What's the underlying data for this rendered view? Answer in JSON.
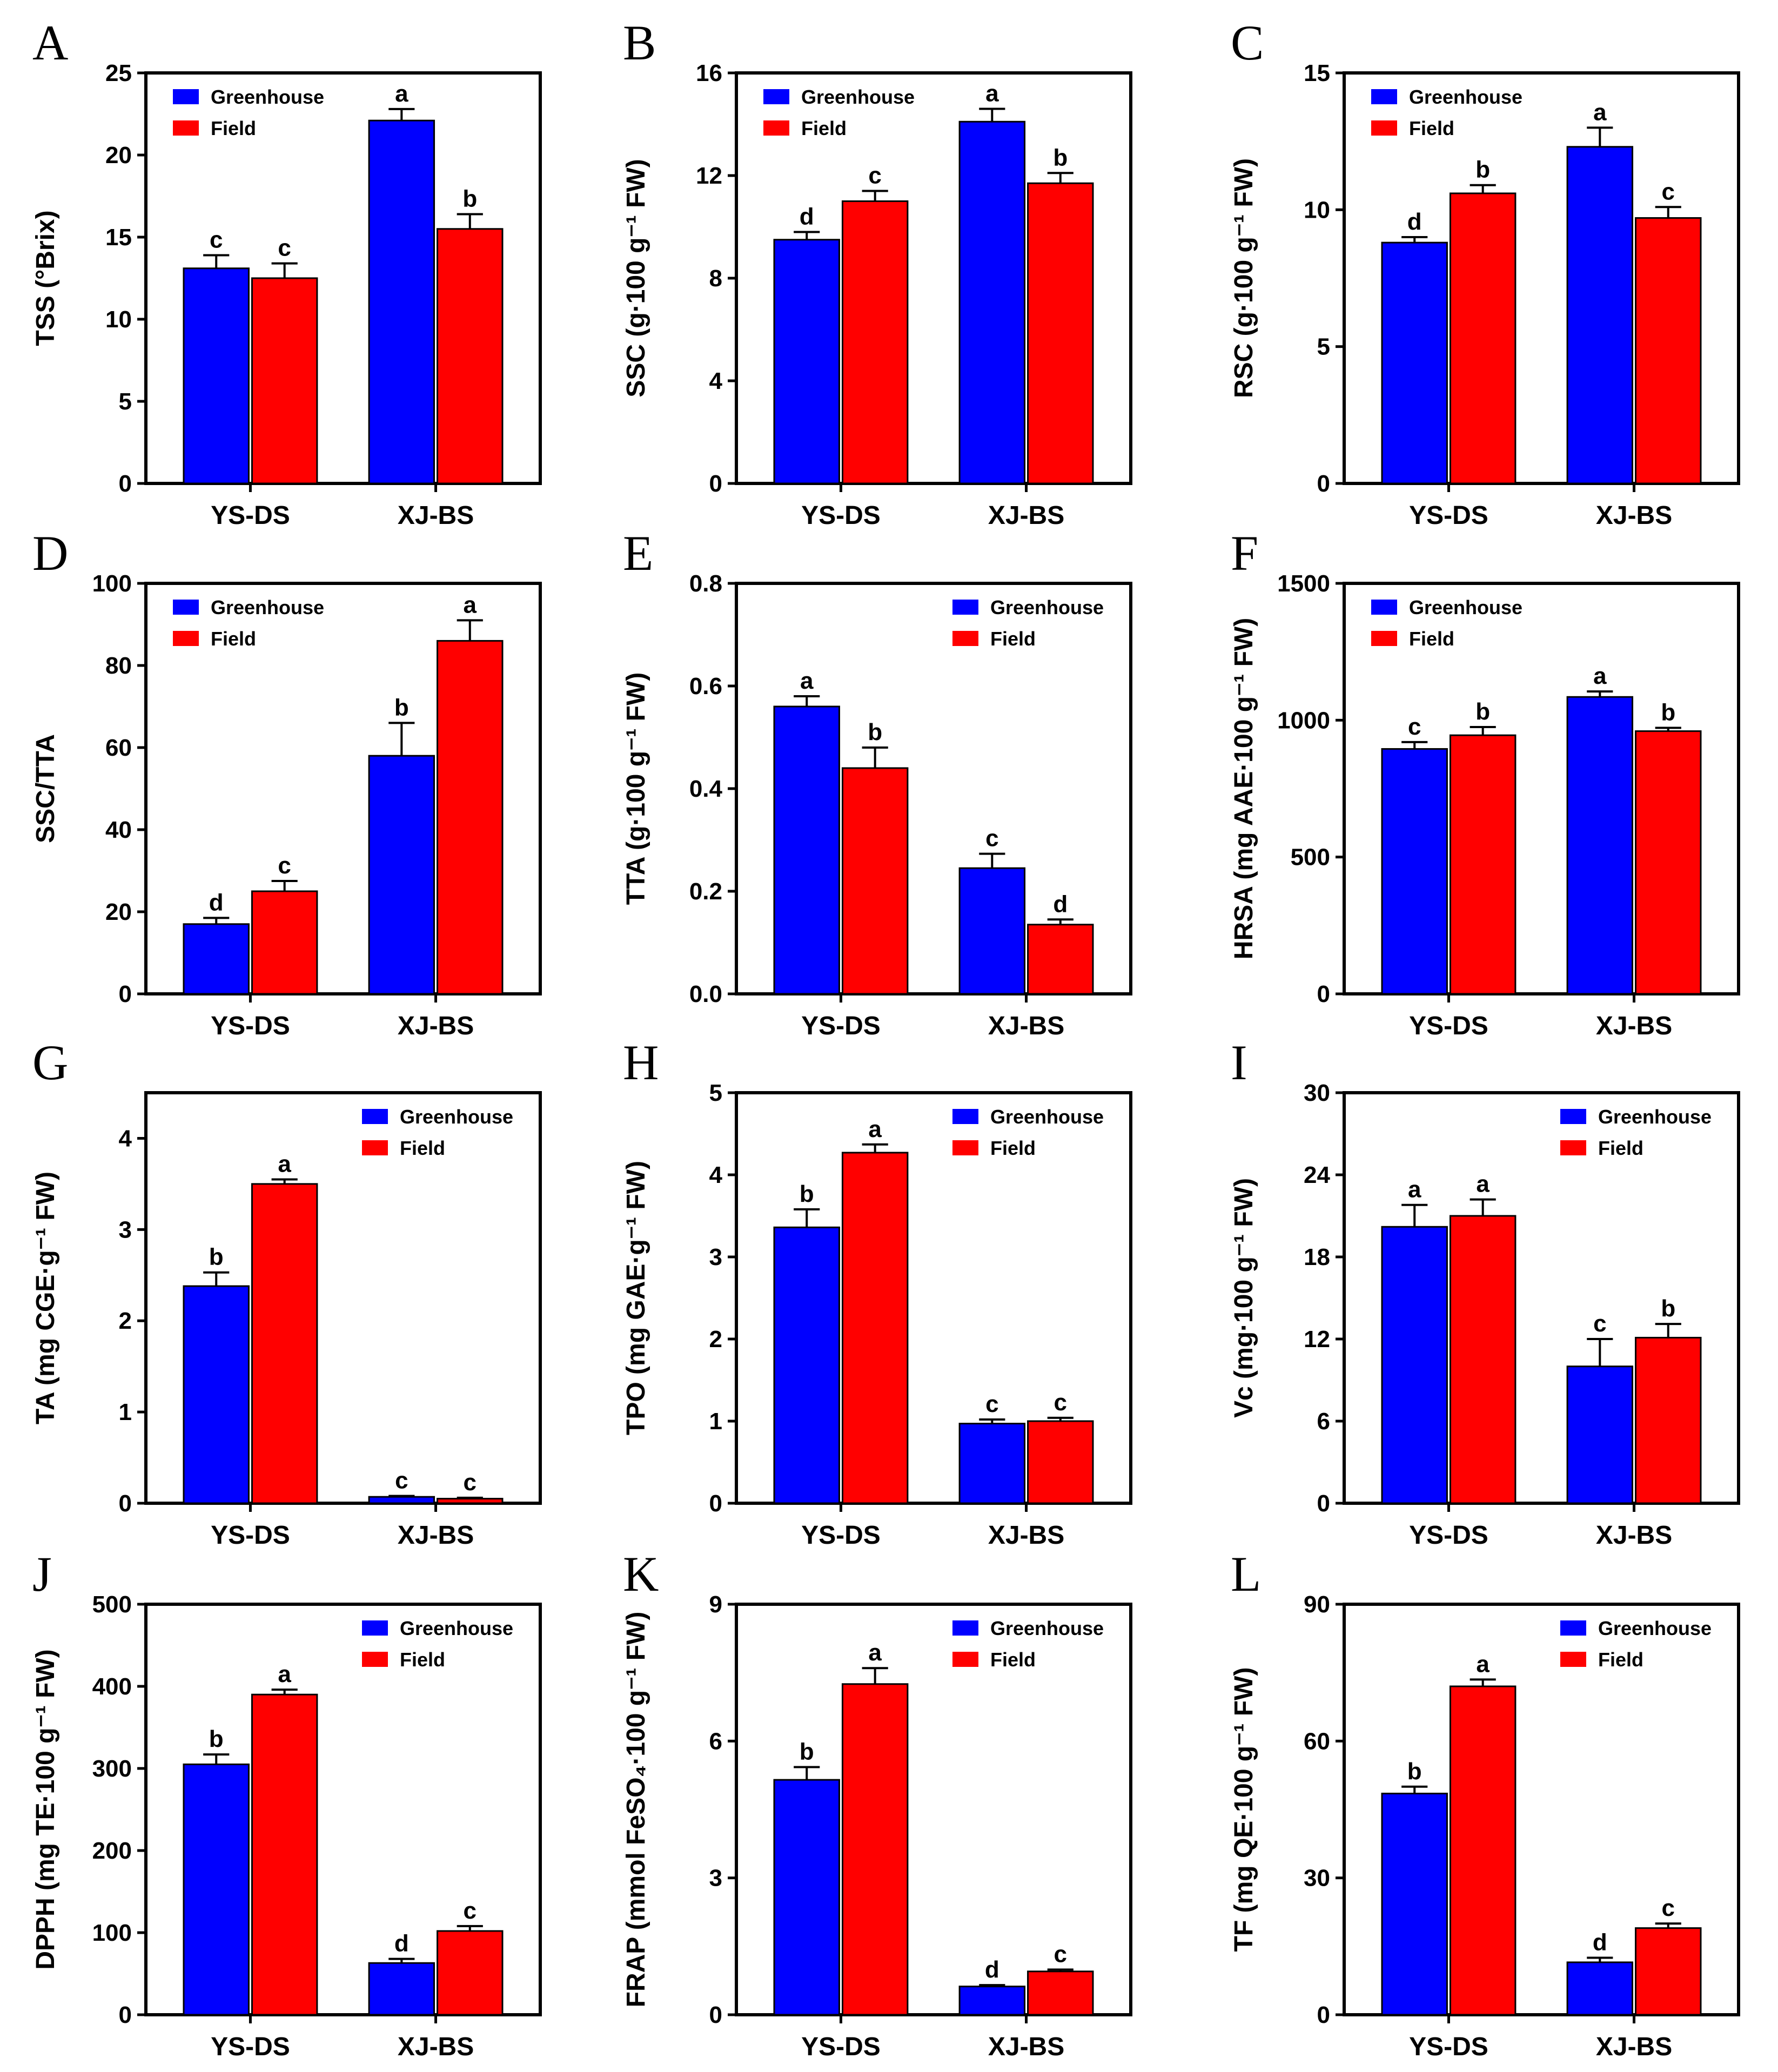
{
  "legend": {
    "greenhouse": "Greenhouse",
    "field": "Field"
  },
  "colors": {
    "greenhouse": "#0000ff",
    "field": "#ff0000"
  },
  "chart_data": [
    {
      "panel": "A",
      "type": "bar",
      "categories": [
        "YS-DS",
        "XJ-BS"
      ],
      "ylabel": "TSS (°Brix)",
      "ylim": [
        0,
        25
      ],
      "yticks": [
        0,
        5,
        10,
        15,
        20,
        25
      ],
      "legend_position": "top-left",
      "series": [
        {
          "name": "Greenhouse",
          "values": [
            13.1,
            22.1
          ],
          "errors": [
            0.8,
            0.7
          ],
          "letters": [
            "c",
            "a"
          ]
        },
        {
          "name": "Field",
          "values": [
            12.5,
            15.5
          ],
          "errors": [
            0.9,
            0.9
          ],
          "letters": [
            "c",
            "b"
          ]
        }
      ]
    },
    {
      "panel": "B",
      "type": "bar",
      "categories": [
        "YS-DS",
        "XJ-BS"
      ],
      "ylabel": "SSC (g·100 g⁻¹ FW)",
      "ylim": [
        0,
        16
      ],
      "yticks": [
        0,
        4,
        8,
        12,
        16
      ],
      "legend_position": "top-left",
      "series": [
        {
          "name": "Greenhouse",
          "values": [
            9.5,
            14.1
          ],
          "errors": [
            0.3,
            0.5
          ],
          "letters": [
            "d",
            "a"
          ]
        },
        {
          "name": "Field",
          "values": [
            11.0,
            11.7
          ],
          "errors": [
            0.4,
            0.4
          ],
          "letters": [
            "c",
            "b"
          ]
        }
      ]
    },
    {
      "panel": "C",
      "type": "bar",
      "categories": [
        "YS-DS",
        "XJ-BS"
      ],
      "ylabel": "RSC (g·100 g⁻¹ FW)",
      "ylim": [
        0,
        15
      ],
      "yticks": [
        0,
        5,
        10,
        15
      ],
      "legend_position": "top-left",
      "series": [
        {
          "name": "Greenhouse",
          "values": [
            8.8,
            12.3
          ],
          "errors": [
            0.2,
            0.7
          ],
          "letters": [
            "d",
            "a"
          ]
        },
        {
          "name": "Field",
          "values": [
            10.6,
            9.7
          ],
          "errors": [
            0.3,
            0.4
          ],
          "letters": [
            "b",
            "c"
          ]
        }
      ]
    },
    {
      "panel": "D",
      "type": "bar",
      "categories": [
        "YS-DS",
        "XJ-BS"
      ],
      "ylabel": "SSC/TTA",
      "ylim": [
        0,
        100
      ],
      "yticks": [
        0,
        20,
        40,
        60,
        80,
        100
      ],
      "legend_position": "top-left",
      "series": [
        {
          "name": "Greenhouse",
          "values": [
            17,
            58
          ],
          "errors": [
            1.5,
            8
          ],
          "letters": [
            "d",
            "b"
          ]
        },
        {
          "name": "Field",
          "values": [
            25,
            86
          ],
          "errors": [
            2.5,
            5
          ],
          "letters": [
            "c",
            "a"
          ]
        }
      ]
    },
    {
      "panel": "E",
      "type": "bar",
      "categories": [
        "YS-DS",
        "XJ-BS"
      ],
      "ylabel": "TTA (g·100 g⁻¹ FW)",
      "ylim": [
        0,
        0.8
      ],
      "yticks": [
        0.0,
        0.2,
        0.4,
        0.6,
        0.8
      ],
      "ytick_decimals": 1,
      "legend_position": "top-right",
      "series": [
        {
          "name": "Greenhouse",
          "values": [
            0.56,
            0.245
          ],
          "errors": [
            0.02,
            0.028
          ],
          "letters": [
            "a",
            "c"
          ]
        },
        {
          "name": "Field",
          "values": [
            0.44,
            0.135
          ],
          "errors": [
            0.04,
            0.01
          ],
          "letters": [
            "b",
            "d"
          ]
        }
      ]
    },
    {
      "panel": "F",
      "type": "bar",
      "categories": [
        "YS-DS",
        "XJ-BS"
      ],
      "ylabel": "HRSA (mg AAE·100 g⁻¹ FW)",
      "ylim": [
        0,
        1500
      ],
      "yticks": [
        0,
        500,
        1000,
        1500
      ],
      "legend_position": "top-left",
      "series": [
        {
          "name": "Greenhouse",
          "values": [
            895,
            1085
          ],
          "errors": [
            25,
            20
          ],
          "letters": [
            "c",
            "a"
          ]
        },
        {
          "name": "Field",
          "values": [
            945,
            960
          ],
          "errors": [
            30,
            12
          ],
          "letters": [
            "b",
            "b"
          ]
        }
      ]
    },
    {
      "panel": "G",
      "type": "bar",
      "categories": [
        "YS-DS",
        "XJ-BS"
      ],
      "ylabel": "TA (mg CGE·g⁻¹ FW)",
      "ylim": [
        0,
        4.5
      ],
      "yticks": [
        0,
        1,
        2,
        3,
        4
      ],
      "legend_position": "top-right",
      "series": [
        {
          "name": "Greenhouse",
          "values": [
            2.38,
            0.07
          ],
          "errors": [
            0.15,
            0.01
          ],
          "letters": [
            "b",
            "c"
          ]
        },
        {
          "name": "Field",
          "values": [
            3.5,
            0.05
          ],
          "errors": [
            0.05,
            0.01
          ],
          "letters": [
            "a",
            "c"
          ]
        }
      ]
    },
    {
      "panel": "H",
      "type": "bar",
      "categories": [
        "YS-DS",
        "XJ-BS"
      ],
      "ylabel": "TPO (mg GAE·g⁻¹ FW)",
      "ylim": [
        0,
        5
      ],
      "yticks": [
        0,
        1,
        2,
        3,
        4,
        5
      ],
      "legend_position": "top-right",
      "series": [
        {
          "name": "Greenhouse",
          "values": [
            3.36,
            0.97
          ],
          "errors": [
            0.22,
            0.05
          ],
          "letters": [
            "b",
            "c"
          ]
        },
        {
          "name": "Field",
          "values": [
            4.27,
            1.0
          ],
          "errors": [
            0.1,
            0.04
          ],
          "letters": [
            "a",
            "c"
          ]
        }
      ]
    },
    {
      "panel": "I",
      "type": "bar",
      "categories": [
        "YS-DS",
        "XJ-BS"
      ],
      "ylabel": "Vc (mg·100 g⁻¹ FW)",
      "ylim": [
        0,
        30
      ],
      "yticks": [
        0,
        6,
        12,
        18,
        24,
        30
      ],
      "legend_position": "top-right",
      "series": [
        {
          "name": "Greenhouse",
          "values": [
            20.2,
            10.0
          ],
          "errors": [
            1.6,
            2.0
          ],
          "letters": [
            "a",
            "c"
          ]
        },
        {
          "name": "Field",
          "values": [
            21.0,
            12.1
          ],
          "errors": [
            1.2,
            1.0
          ],
          "letters": [
            "a",
            "b"
          ]
        }
      ]
    },
    {
      "panel": "J",
      "type": "bar",
      "categories": [
        "YS-DS",
        "XJ-BS"
      ],
      "ylabel": "DPPH (mg TE·100 g⁻¹ FW)",
      "ylim": [
        0,
        500
      ],
      "yticks": [
        0,
        100,
        200,
        300,
        400,
        500
      ],
      "legend_position": "top-right",
      "series": [
        {
          "name": "Greenhouse",
          "values": [
            305,
            63
          ],
          "errors": [
            12,
            5
          ],
          "letters": [
            "b",
            "d"
          ]
        },
        {
          "name": "Field",
          "values": [
            390,
            102
          ],
          "errors": [
            6,
            6
          ],
          "letters": [
            "a",
            "c"
          ]
        }
      ]
    },
    {
      "panel": "K",
      "type": "bar",
      "categories": [
        "YS-DS",
        "XJ-BS"
      ],
      "ylabel": "FRAP (mmol FeSO₄·100 g⁻¹ FW)",
      "ylim": [
        0,
        9
      ],
      "yticks": [
        0,
        3,
        6,
        9
      ],
      "legend_position": "top-right",
      "series": [
        {
          "name": "Greenhouse",
          "values": [
            5.15,
            0.62
          ],
          "errors": [
            0.28,
            0.03
          ],
          "letters": [
            "b",
            "d"
          ]
        },
        {
          "name": "Field",
          "values": [
            7.25,
            0.95
          ],
          "errors": [
            0.35,
            0.04
          ],
          "letters": [
            "a",
            "c"
          ]
        }
      ]
    },
    {
      "panel": "L",
      "type": "bar",
      "categories": [
        "YS-DS",
        "XJ-BS"
      ],
      "ylabel": "TF (mg QE·100 g⁻¹ FW)",
      "ylim": [
        0,
        90
      ],
      "yticks": [
        0,
        30,
        60,
        90
      ],
      "legend_position": "top-right",
      "series": [
        {
          "name": "Greenhouse",
          "values": [
            48.5,
            11.5
          ],
          "errors": [
            1.5,
            1.0
          ],
          "letters": [
            "b",
            "d"
          ]
        },
        {
          "name": "Field",
          "values": [
            72,
            19
          ],
          "errors": [
            1.5,
            1.0
          ],
          "letters": [
            "a",
            "c"
          ]
        }
      ]
    }
  ]
}
